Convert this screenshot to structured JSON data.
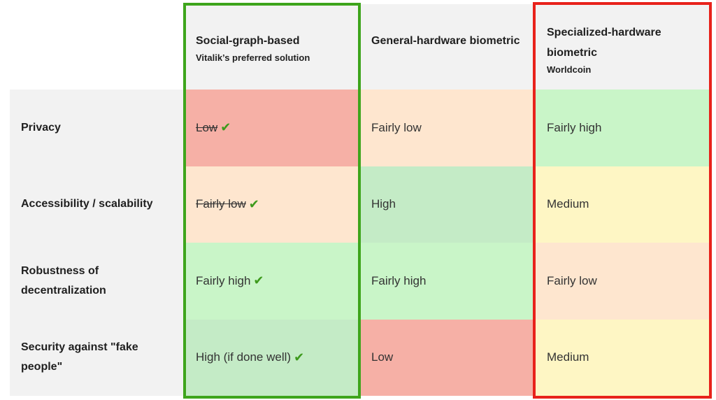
{
  "columns": [
    {
      "title": "Social-graph-based",
      "subtitle": "Vitalik’s preferred solution"
    },
    {
      "title": "General-hardware biometric",
      "subtitle": ""
    },
    {
      "title": "Specialized-hardware biometric",
      "subtitle": "Worldcoin"
    }
  ],
  "rows": [
    {
      "label": "Privacy",
      "cells": [
        {
          "text": "Low",
          "strike": true,
          "check": true
        },
        {
          "text": "Fairly low"
        },
        {
          "text": "Fairly high"
        }
      ]
    },
    {
      "label": "Accessibility / scalability",
      "cells": [
        {
          "text": "Fairly low",
          "strike": true,
          "check": true
        },
        {
          "text": "High"
        },
        {
          "text": "Medium"
        }
      ]
    },
    {
      "label": "Robustness of decentralization",
      "cells": [
        {
          "text": "Fairly high",
          "check": true
        },
        {
          "text": "Fairly high"
        },
        {
          "text": "Fairly low"
        }
      ]
    },
    {
      "label": "Security against \"fake people\"",
      "cells": [
        {
          "text": "High (if done well)",
          "check": true
        },
        {
          "text": "Low"
        },
        {
          "text": "Medium"
        }
      ]
    }
  ],
  "check_symbol": "✔",
  "colors": {
    "low": "#f6b0a6",
    "fairly_low": "#fee6cf",
    "medium": "#fef6c4",
    "fairly_high": "#c9f5c8",
    "high": "#c4ebc6",
    "highlight_green": "#3ea51c",
    "highlight_red": "#e8221b",
    "check_green": "#3d9a1c"
  }
}
